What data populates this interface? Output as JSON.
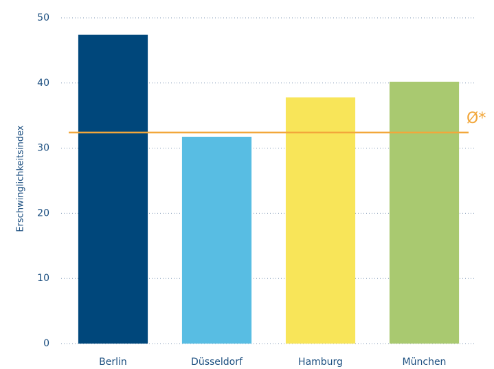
{
  "chart_data": {
    "type": "bar",
    "y_label": "Erschwinglichkeitsindex",
    "categories": [
      "Berlin",
      "Düsseldorf",
      "Hamburg",
      "München"
    ],
    "values": [
      47.4,
      31.75,
      37.8,
      40.2
    ],
    "colors": [
      "#00477b",
      "#58bde3",
      "#f8e559",
      "#a9c970"
    ],
    "ylim": [
      0,
      50
    ],
    "yticks": [
      0,
      10,
      20,
      30,
      40,
      50
    ],
    "grid": true,
    "reference_line": {
      "value": 32.4,
      "label": "Ø*",
      "color": "#f2a73b"
    }
  }
}
